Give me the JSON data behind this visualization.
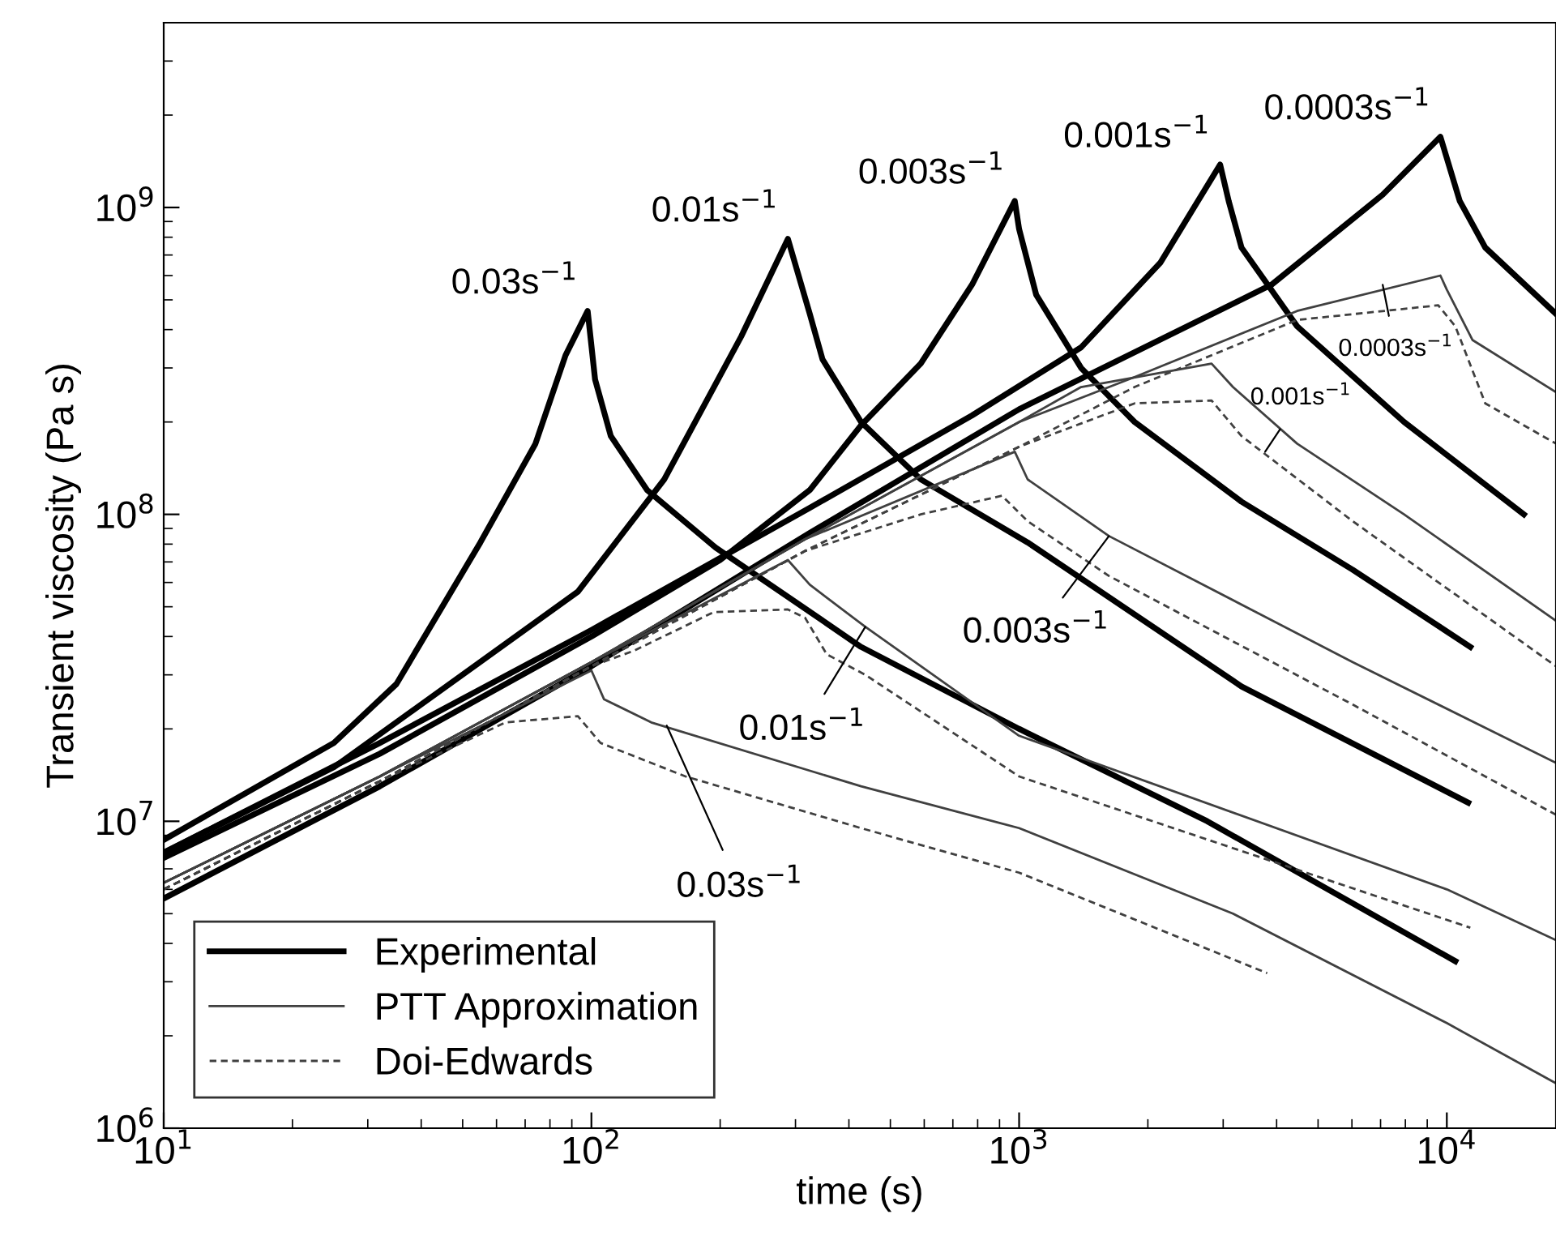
{
  "chart_data": {
    "type": "line",
    "xlabel": "time (s)",
    "ylabel": "Transient viscosity (Pa s)",
    "log": "xy",
    "xlim": [
      10,
      18000
    ],
    "ylim": [
      1000000,
      4000000000
    ],
    "xticks": [
      {
        "value": 10,
        "label": "10$^{1}$"
      },
      {
        "value": 100,
        "label": "10$^{2}$"
      },
      {
        "value": 1000,
        "label": "10$^{3}$"
      },
      {
        "value": 10000,
        "label": "10$^{4}$"
      }
    ],
    "yticks": [
      {
        "value": 1000000,
        "label": "10$^{6}$"
      },
      {
        "value": 10000000,
        "label": "10$^{7}$"
      },
      {
        "value": 100000000,
        "label": "10$^{8}$"
      },
      {
        "value": 1000000000,
        "label": "10$^{9}$"
      }
    ],
    "grid": false,
    "legend": "bottom left",
    "marker": "none",
    "series": [
      {
        "name": "Experimental",
        "color": "#000000",
        "line_style": "solid",
        "x": [
          10,
          25,
          35,
          55,
          74,
          87,
          98,
          102,
          111,
          135,
          195,
          299,
          427,
          1000,
          2754,
          10470
        ],
        "values": [
          8700000,
          18000000,
          28000000,
          81000000,
          170000000,
          330000000,
          460000000,
          275000000,
          180000000,
          120000000,
          78000000,
          52000000,
          37000000,
          20000000,
          10000000,
          3500000
        ]
      },
      {
        "color": "#000000",
        "line_style": "solid",
        "x": [
          10,
          25,
          93,
          148,
          224,
          288,
          324,
          347,
          427,
          589,
          1047,
          3311,
          11220
        ],
        "values": [
          7900000,
          15000000,
          56000000,
          130000000,
          380000000,
          790000000,
          450000000,
          320000000,
          200000000,
          130000000,
          81000000,
          27500000,
          11500000
        ]
      },
      {
        "color": "#000000",
        "line_style": "solid",
        "x": [
          10,
          32,
          100,
          200,
          324,
          427,
          589,
          776,
          977,
          1000,
          1096,
          1396,
          1862,
          3311,
          6026,
          11350
        ],
        "values": [
          7600000,
          16600000,
          40000000,
          71000000,
          120000000,
          195000000,
          310000000,
          560000000,
          1050000000,
          850000000,
          520000000,
          300000000,
          200000000,
          110000000,
          66000000,
          37000000
        ]
      },
      {
        "color": "#000000",
        "line_style": "solid",
        "x": [
          10,
          32,
          100,
          324,
          776,
          1396,
          2138,
          2951,
          3090,
          3311,
          4467,
          7943,
          15140
        ],
        "values": [
          7900000,
          18000000,
          42000000,
          105000000,
          210000000,
          350000000,
          660000000,
          1380000000,
          1050000000,
          740000000,
          410000000,
          200000000,
          100000000
        ]
      },
      {
        "color": "#000000",
        "line_style": "solid",
        "x": [
          10,
          32,
          100,
          324,
          1000,
          3890,
          7079,
          9660,
          10720,
          12300,
          18000
        ],
        "values": [
          5600000,
          13000000,
          32000000,
          87000000,
          220000000,
          560000000,
          1100000000,
          1700000000,
          1050000000,
          740000000,
          450000000
        ]
      },
      {
        "name": "PTT Approximation",
        "color": "#404040",
        "line_style": "solid",
        "x": [
          10,
          32,
          100,
          107,
          138,
          427,
          1000,
          3162,
          10000,
          18000
        ],
        "values": [
          6300000,
          14000000,
          31000000,
          25000000,
          21000000,
          13000000,
          9500000,
          5000000,
          2200000,
          1400000
        ]
      },
      {
        "name": "Doi-Edwards",
        "color": "#404040",
        "line_style": "dashed",
        "x": [
          10,
          32,
          63,
          93,
          105,
          166,
          427,
          1000,
          3802
        ],
        "values": [
          6000000,
          13500000,
          21000000,
          22000000,
          18000000,
          14000000,
          9500000,
          6800000,
          3200000
        ]
      },
      {
        "color": "#404040",
        "line_style": "solid",
        "x": [
          10,
          32,
          100,
          288,
          324,
          437,
          1000,
          10000,
          18000
        ],
        "values": [
          6300000,
          14000000,
          33000000,
          71000000,
          59000000,
          43000000,
          19000000,
          6000000,
          4100000
        ]
      },
      {
        "color": "#404040",
        "line_style": "dashed",
        "x": [
          10,
          32,
          100,
          126,
          193,
          288,
          316,
          355,
          437,
          1000,
          11350
        ],
        "values": [
          6000000,
          13500000,
          32000000,
          36000000,
          48000000,
          49000000,
          46000000,
          35000000,
          30000000,
          14000000,
          4500000
        ]
      },
      {
        "color": "#404040",
        "line_style": "solid",
        "x": [
          10,
          32,
          100,
          316,
          977,
          1047,
          1622,
          6026,
          18000
        ],
        "values": [
          6300000,
          14000000,
          33000000,
          83000000,
          160000000,
          130000000,
          85000000,
          33000000,
          15500000
        ]
      },
      {
        "color": "#404040",
        "line_style": "dashed",
        "x": [
          10,
          32,
          100,
          316,
          589,
          912,
          1047,
          1622,
          6026,
          18000
        ],
        "values": [
          6000000,
          13500000,
          32000000,
          76000000,
          100000000,
          115000000,
          95000000,
          63000000,
          24000000,
          10500000
        ]
      },
      {
        "color": "#404040",
        "line_style": "solid",
        "x": [
          10,
          32,
          100,
          316,
          1000,
          1396,
          2818,
          3162,
          4467,
          7943,
          18000
        ],
        "values": [
          6300000,
          14000000,
          33000000,
          83000000,
          200000000,
          260000000,
          310000000,
          260000000,
          170000000,
          100000000,
          45000000
        ]
      },
      {
        "color": "#404040",
        "line_style": "dashed",
        "x": [
          10,
          32,
          100,
          316,
          1000,
          1862,
          2818,
          3311,
          6026,
          18000
        ],
        "values": [
          6000000,
          13500000,
          32000000,
          76000000,
          166000000,
          230000000,
          235000000,
          180000000,
          95000000,
          32000000
        ]
      },
      {
        "color": "#404040",
        "line_style": "solid",
        "x": [
          10,
          32,
          100,
          316,
          1000,
          1862,
          4467,
          9660,
          10000,
          11480,
          18000
        ],
        "values": [
          6300000,
          14000000,
          33000000,
          83000000,
          200000000,
          280000000,
          460000000,
          600000000,
          540000000,
          370000000,
          250000000
        ]
      },
      {
        "color": "#404040",
        "line_style": "dashed",
        "x": [
          10,
          32,
          100,
          316,
          1000,
          1862,
          4467,
          9550,
          10470,
          12300,
          18000
        ],
        "values": [
          6000000,
          13500000,
          32000000,
          76000000,
          166000000,
          260000000,
          430000000,
          480000000,
          410000000,
          230000000,
          170000000
        ]
      }
    ],
    "annotations": [
      {
        "text": "0.03s$^{−1}$",
        "x": 98,
        "y": 460000000
      },
      {
        "text": "0.01s$^{−1}$",
        "x": 288,
        "y": 790000000
      },
      {
        "text": "0.003s$^{−1}$",
        "x": 977,
        "y": 1050000000
      },
      {
        "text": "0.001s$^{−1}$",
        "x": 2951,
        "y": 1380000000
      },
      {
        "text": "0.0003s$^{−1}$",
        "x": 9660,
        "y": 1700000000
      },
      {
        "text": "0.03s$^{−1}$",
        "x": 150,
        "y": 20500000
      },
      {
        "text": "0.01s$^{−1}$",
        "x": 437,
        "y": 43000000
      },
      {
        "text": "0.003s$^{−1}$",
        "x": 1622,
        "y": 85000000
      },
      {
        "text": "0.001s$^{−1}$",
        "x": 3760,
        "y": 160000000
      },
      {
        "text": "0.0003s$^{−1}$",
        "x": 7080,
        "y": 560000000
      }
    ]
  }
}
